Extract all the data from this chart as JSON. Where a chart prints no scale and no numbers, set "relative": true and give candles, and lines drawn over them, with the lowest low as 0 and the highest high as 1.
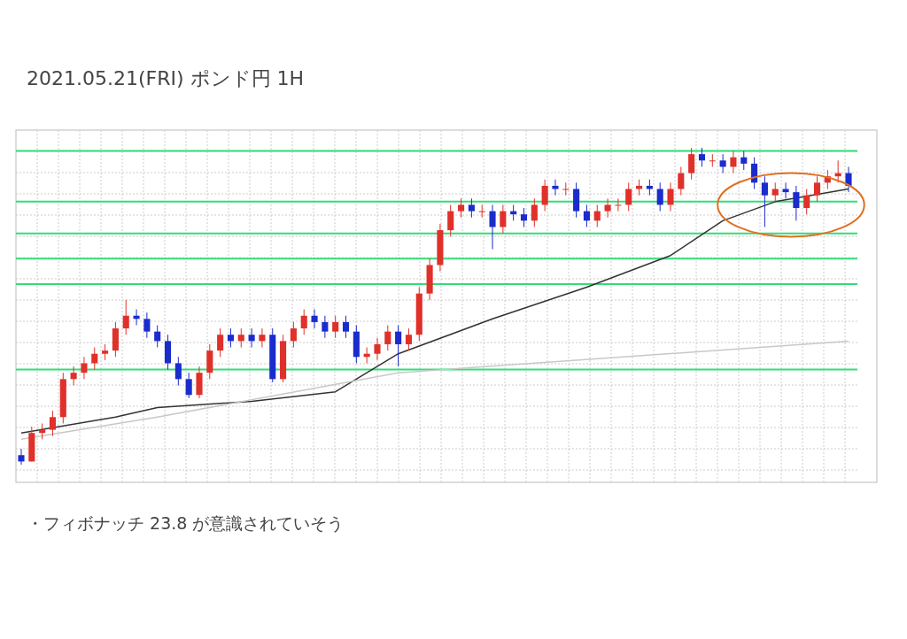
{
  "chart_data": {
    "type": "candlestick",
    "title": "2021.05.21(FRI)  ポンド円 1H",
    "relative": true,
    "grid": true,
    "annotations": [
      "・フィボナッチ 23.8 が意識されていそう"
    ],
    "categories": [
      null,
      null,
      null,
      null,
      null,
      null,
      null,
      null,
      null,
      null,
      null,
      null,
      null,
      null,
      null,
      null,
      null,
      null,
      null,
      null,
      null,
      null,
      null,
      null,
      null,
      null,
      null,
      null,
      null,
      null,
      null,
      null,
      null,
      null,
      null,
      null,
      null,
      null,
      null,
      null,
      null,
      null,
      null,
      null,
      null,
      null,
      null,
      null,
      null,
      null,
      null,
      null,
      null,
      null,
      null,
      null,
      null,
      null,
      null,
      null,
      null,
      null,
      null,
      null,
      null,
      null,
      null,
      null,
      null,
      null,
      null,
      null,
      null,
      null,
      null,
      null,
      null,
      null,
      null,
      null
    ],
    "ohlc": [
      [
        0.03,
        0.05,
        0.0,
        0.01
      ],
      [
        0.01,
        0.12,
        0.01,
        0.1
      ],
      [
        0.1,
        0.13,
        0.08,
        0.11
      ],
      [
        0.11,
        0.17,
        0.09,
        0.15
      ],
      [
        0.15,
        0.29,
        0.13,
        0.27
      ],
      [
        0.27,
        0.31,
        0.25,
        0.29
      ],
      [
        0.29,
        0.34,
        0.27,
        0.32
      ],
      [
        0.32,
        0.37,
        0.3,
        0.35
      ],
      [
        0.35,
        0.38,
        0.33,
        0.36
      ],
      [
        0.36,
        0.45,
        0.34,
        0.43
      ],
      [
        0.43,
        0.52,
        0.41,
        0.47
      ],
      [
        0.47,
        0.49,
        0.44,
        0.46
      ],
      [
        0.46,
        0.48,
        0.4,
        0.42
      ],
      [
        0.42,
        0.44,
        0.37,
        0.39
      ],
      [
        0.39,
        0.41,
        0.3,
        0.32
      ],
      [
        0.32,
        0.34,
        0.25,
        0.27
      ],
      [
        0.27,
        0.29,
        0.21,
        0.22
      ],
      [
        0.22,
        0.31,
        0.21,
        0.29
      ],
      [
        0.29,
        0.38,
        0.27,
        0.36
      ],
      [
        0.36,
        0.43,
        0.34,
        0.41
      ],
      [
        0.41,
        0.43,
        0.37,
        0.39
      ],
      [
        0.39,
        0.43,
        0.37,
        0.41
      ],
      [
        0.41,
        0.43,
        0.37,
        0.39
      ],
      [
        0.39,
        0.43,
        0.37,
        0.41
      ],
      [
        0.41,
        0.43,
        0.26,
        0.27
      ],
      [
        0.27,
        0.41,
        0.26,
        0.39
      ],
      [
        0.39,
        0.45,
        0.37,
        0.43
      ],
      [
        0.43,
        0.49,
        0.41,
        0.47
      ],
      [
        0.47,
        0.49,
        0.43,
        0.45
      ],
      [
        0.45,
        0.47,
        0.4,
        0.42
      ],
      [
        0.42,
        0.47,
        0.4,
        0.45
      ],
      [
        0.45,
        0.47,
        0.4,
        0.42
      ],
      [
        0.42,
        0.44,
        0.32,
        0.34
      ],
      [
        0.34,
        0.37,
        0.32,
        0.35
      ],
      [
        0.35,
        0.4,
        0.33,
        0.38
      ],
      [
        0.38,
        0.44,
        0.36,
        0.42
      ],
      [
        0.42,
        0.44,
        0.31,
        0.38
      ],
      [
        0.38,
        0.43,
        0.36,
        0.41
      ],
      [
        0.41,
        0.56,
        0.39,
        0.54
      ],
      [
        0.54,
        0.65,
        0.52,
        0.63
      ],
      [
        0.63,
        0.76,
        0.61,
        0.74
      ],
      [
        0.74,
        0.82,
        0.72,
        0.8
      ],
      [
        0.8,
        0.84,
        0.78,
        0.82
      ],
      [
        0.82,
        0.84,
        0.78,
        0.8
      ],
      [
        0.8,
        0.82,
        0.78,
        0.8
      ],
      [
        0.8,
        0.82,
        0.68,
        0.75
      ],
      [
        0.75,
        0.82,
        0.73,
        0.8
      ],
      [
        0.8,
        0.82,
        0.77,
        0.79
      ],
      [
        0.79,
        0.81,
        0.75,
        0.77
      ],
      [
        0.77,
        0.84,
        0.75,
        0.82
      ],
      [
        0.82,
        0.9,
        0.8,
        0.88
      ],
      [
        0.88,
        0.9,
        0.85,
        0.87
      ],
      [
        0.87,
        0.89,
        0.85,
        0.87
      ],
      [
        0.87,
        0.89,
        0.78,
        0.8
      ],
      [
        0.8,
        0.82,
        0.75,
        0.77
      ],
      [
        0.77,
        0.82,
        0.75,
        0.8
      ],
      [
        0.8,
        0.84,
        0.78,
        0.82
      ],
      [
        0.82,
        0.84,
        0.8,
        0.82
      ],
      [
        0.82,
        0.89,
        0.8,
        0.87
      ],
      [
        0.87,
        0.9,
        0.85,
        0.88
      ],
      [
        0.88,
        0.9,
        0.85,
        0.87
      ],
      [
        0.87,
        0.89,
        0.8,
        0.82
      ],
      [
        0.82,
        0.89,
        0.8,
        0.87
      ],
      [
        0.87,
        0.94,
        0.85,
        0.92
      ],
      [
        0.92,
        1.0,
        0.9,
        0.98
      ],
      [
        0.98,
        1.0,
        0.94,
        0.96
      ],
      [
        0.96,
        0.98,
        0.94,
        0.96
      ],
      [
        0.96,
        0.98,
        0.92,
        0.94
      ],
      [
        0.94,
        0.99,
        0.92,
        0.97
      ],
      [
        0.97,
        0.99,
        0.93,
        0.95
      ],
      [
        0.95,
        0.97,
        0.87,
        0.89
      ],
      [
        0.89,
        0.91,
        0.75,
        0.85
      ],
      [
        0.85,
        0.89,
        0.83,
        0.87
      ],
      [
        0.87,
        0.89,
        0.84,
        0.86
      ],
      [
        0.86,
        0.88,
        0.77,
        0.81
      ],
      [
        0.81,
        0.87,
        0.79,
        0.85
      ],
      [
        0.85,
        0.91,
        0.83,
        0.89
      ],
      [
        0.89,
        0.93,
        0.87,
        0.91
      ],
      [
        0.91,
        0.96,
        0.89,
        0.92
      ],
      [
        0.92,
        0.94,
        0.86,
        0.88
      ]
    ],
    "series": [
      {
        "type": "line",
        "color": "#333333",
        "values": [
          0.1,
          null,
          null,
          null,
          null,
          null,
          null,
          null,
          null,
          0.15,
          null,
          null,
          null,
          0.18,
          null,
          null,
          null,
          null,
          null,
          null,
          null,
          null,
          0.2,
          null,
          null,
          null,
          null,
          null,
          null,
          null,
          0.23,
          null,
          null,
          null,
          null,
          null,
          0.35,
          null,
          null,
          null,
          null,
          null,
          null,
          null,
          null,
          0.46,
          null,
          null,
          null,
          null,
          null,
          null,
          null,
          null,
          0.56,
          null,
          null,
          null,
          null,
          null,
          null,
          null,
          0.66,
          null,
          null,
          null,
          null,
          0.77,
          null,
          null,
          null,
          null,
          0.83,
          null,
          null,
          null,
          null,
          null,
          null,
          0.87
        ]
      },
      {
        "type": "line",
        "color": "#c8c8c8",
        "values": [
          0.08,
          null,
          null,
          null,
          null,
          null,
          null,
          null,
          null,
          null,
          null,
          null,
          null,
          0.15,
          null,
          null,
          null,
          null,
          null,
          null,
          null,
          null,
          null,
          null,
          null,
          null,
          null,
          null,
          null,
          null,
          null,
          null,
          null,
          null,
          null,
          null,
          0.29,
          null,
          null,
          null,
          null,
          null,
          null,
          null,
          null,
          null,
          null,
          null,
          null,
          null,
          null,
          null,
          null,
          null,
          null,
          null,
          null,
          null,
          null,
          null,
          null,
          null,
          null,
          null,
          null,
          null,
          null,
          null,
          null,
          null,
          null,
          null,
          null,
          null,
          null,
          null,
          null,
          null,
          null,
          0.39
        ]
      }
    ],
    "ref_lines": [
      {
        "axis": "y",
        "value": 0.99,
        "color": "#33dd77"
      },
      {
        "axis": "y",
        "value": 0.83,
        "color": "#33dd77"
      },
      {
        "axis": "y",
        "value": 0.73,
        "color": "#33dd77"
      },
      {
        "axis": "y",
        "value": 0.65,
        "color": "#33dd77"
      },
      {
        "axis": "y",
        "value": 0.57,
        "color": "#33dd77"
      },
      {
        "axis": "y",
        "value": 0.3,
        "color": "#33dd77"
      }
    ]
  }
}
